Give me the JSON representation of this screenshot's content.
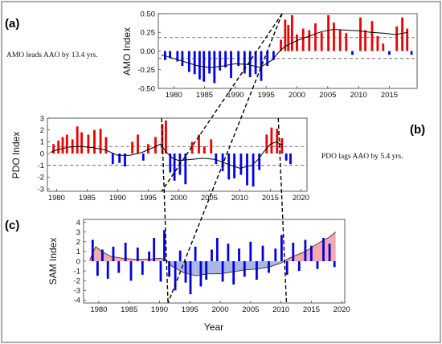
{
  "chart_data": [
    {
      "id": "a",
      "type": "bar",
      "panel_label": "(a)",
      "ylabel": "AMO Index",
      "xlabel": "",
      "annotation": "AMO leads AAO by 13.4 yrs.",
      "xlim": [
        1977.5,
        2019.5
      ],
      "ylim": [
        -0.5,
        0.5
      ],
      "xticks": [
        "1980",
        "1985",
        "1990",
        "1995",
        "2000",
        "2005",
        "2010",
        "2015"
      ],
      "yticks": [
        "0.50",
        "0.25",
        "0.00",
        "-0.25",
        "-0.50"
      ],
      "thresholds": [
        0.18,
        -0.1
      ],
      "positive_color": "#ee0000",
      "negative_color": "#0000ee",
      "smooth_x": [
        1978,
        1980,
        1982,
        1984,
        1986,
        1988,
        1990,
        1992,
        1994,
        1996,
        1997,
        1998,
        2000,
        2002,
        2004,
        2006,
        2008,
        2010,
        2012,
        2014,
        2016,
        2018
      ],
      "smooth_y": [
        -0.05,
        -0.1,
        -0.15,
        -0.2,
        -0.22,
        -0.2,
        -0.17,
        -0.18,
        -0.22,
        -0.12,
        -0.02,
        0.06,
        0.14,
        0.2,
        0.26,
        0.29,
        0.28,
        0.27,
        0.25,
        0.24,
        0.22,
        0.25
      ],
      "spikes": [
        {
          "x": 1978.6,
          "y": -0.12
        },
        {
          "x": 1979.4,
          "y": -0.09
        },
        {
          "x": 1980.6,
          "y": -0.14
        },
        {
          "x": 1981.4,
          "y": -0.2
        },
        {
          "x": 1982.5,
          "y": -0.28
        },
        {
          "x": 1983.4,
          "y": -0.31
        },
        {
          "x": 1984.2,
          "y": -0.38
        },
        {
          "x": 1984.9,
          "y": -0.41
        },
        {
          "x": 1985.8,
          "y": -0.3
        },
        {
          "x": 1986.6,
          "y": -0.43
        },
        {
          "x": 1987.5,
          "y": -0.26
        },
        {
          "x": 1988.4,
          "y": -0.22
        },
        {
          "x": 1989.3,
          "y": -0.36
        },
        {
          "x": 1990.5,
          "y": -0.2
        },
        {
          "x": 1991.5,
          "y": -0.3
        },
        {
          "x": 1992.4,
          "y": -0.35
        },
        {
          "x": 1993.3,
          "y": -0.31
        },
        {
          "x": 1994.2,
          "y": -0.4
        },
        {
          "x": 1995.2,
          "y": -0.2
        },
        {
          "x": 1996.2,
          "y": -0.12
        },
        {
          "x": 1997.4,
          "y": 0.15
        },
        {
          "x": 1998.1,
          "y": 0.42
        },
        {
          "x": 1998.6,
          "y": 0.35
        },
        {
          "x": 1999.2,
          "y": 0.48
        },
        {
          "x": 2000.0,
          "y": 0.22
        },
        {
          "x": 2001.0,
          "y": 0.3
        },
        {
          "x": 2002.0,
          "y": 0.28
        },
        {
          "x": 2003.0,
          "y": 0.37
        },
        {
          "x": 2004.0,
          "y": 0.25
        },
        {
          "x": 2005.1,
          "y": 0.48
        },
        {
          "x": 2006.0,
          "y": 0.38
        },
        {
          "x": 2007.0,
          "y": 0.29
        },
        {
          "x": 2008.0,
          "y": 0.24
        },
        {
          "x": 2009.0,
          "y": -0.05
        },
        {
          "x": 2010.3,
          "y": 0.45
        },
        {
          "x": 2011.1,
          "y": 0.28
        },
        {
          "x": 2012.2,
          "y": 0.4
        },
        {
          "x": 2013.1,
          "y": 0.2
        },
        {
          "x": 2014.0,
          "y": 0.1
        },
        {
          "x": 2015.0,
          "y": -0.05
        },
        {
          "x": 2016.2,
          "y": 0.33
        },
        {
          "x": 2017.1,
          "y": 0.45
        },
        {
          "x": 2017.9,
          "y": 0.3
        },
        {
          "x": 2018.6,
          "y": -0.05
        }
      ]
    },
    {
      "id": "b",
      "type": "bar",
      "panel_label": "(b)",
      "ylabel": "PDO Index",
      "xlabel": "",
      "annotation": "PDO lags AAO by 5.4 yrs.",
      "xlim": [
        1978.5,
        2021
      ],
      "ylim": [
        -3.2,
        3
      ],
      "xticks": [
        "1980",
        "1985",
        "1990",
        "1995",
        "2000",
        "2005",
        "2010",
        "2015",
        "2020"
      ],
      "yticks": [
        "3",
        "2",
        "1",
        "0",
        "-1",
        "-2",
        "-3"
      ],
      "thresholds": [
        0.6,
        -1.0
      ],
      "positive_color": "#ee0000",
      "negative_color": "#0000ee",
      "smooth_x": [
        1979,
        1980,
        1982,
        1984,
        1986,
        1988,
        1990,
        1992,
        1994,
        1996,
        1997,
        1998,
        1999,
        2000,
        2002,
        2004,
        2006,
        2008,
        2010,
        2012,
        2013,
        2014,
        2015,
        2016,
        2017
      ],
      "smooth_y": [
        0.1,
        0.3,
        0.55,
        0.6,
        0.5,
        0.3,
        -0.15,
        -0.15,
        0.1,
        0.55,
        0.8,
        0.1,
        -0.4,
        -0.6,
        -0.5,
        -0.4,
        -0.5,
        -0.9,
        -1.25,
        -1.0,
        -0.5,
        0.2,
        0.8,
        1.0,
        0.7
      ],
      "spikes": [
        {
          "x": 1979.5,
          "y": 0.8
        },
        {
          "x": 1980.3,
          "y": 1.1
        },
        {
          "x": 1981.0,
          "y": 1.4
        },
        {
          "x": 1981.7,
          "y": 1.6
        },
        {
          "x": 1982.6,
          "y": 1.2
        },
        {
          "x": 1983.4,
          "y": 2.3
        },
        {
          "x": 1984.1,
          "y": 1.8
        },
        {
          "x": 1985.2,
          "y": 1.6
        },
        {
          "x": 1986.2,
          "y": 2.0
        },
        {
          "x": 1987.2,
          "y": 2.1
        },
        {
          "x": 1988.1,
          "y": 1.4
        },
        {
          "x": 1989.2,
          "y": -0.9
        },
        {
          "x": 1990.3,
          "y": -0.8
        },
        {
          "x": 1991.2,
          "y": -1.1
        },
        {
          "x": 1992.4,
          "y": 1.0
        },
        {
          "x": 1993.3,
          "y": 1.6
        },
        {
          "x": 1994.2,
          "y": -0.6
        },
        {
          "x": 1995.0,
          "y": 0.8
        },
        {
          "x": 1996.2,
          "y": 1.4
        },
        {
          "x": 1997.3,
          "y": 2.5
        },
        {
          "x": 1997.9,
          "y": 2.8
        },
        {
          "x": 1998.6,
          "y": -1.6
        },
        {
          "x": 1999.3,
          "y": -2.3
        },
        {
          "x": 2000.2,
          "y": -1.8
        },
        {
          "x": 2001.1,
          "y": -2.6
        },
        {
          "x": 2002.2,
          "y": 1.0
        },
        {
          "x": 2003.3,
          "y": 1.6
        },
        {
          "x": 2004.2,
          "y": 0.6
        },
        {
          "x": 2005.3,
          "y": 1.2
        },
        {
          "x": 2006.1,
          "y": -0.9
        },
        {
          "x": 2007.2,
          "y": -1.5
        },
        {
          "x": 2008.2,
          "y": -2.2
        },
        {
          "x": 2009.1,
          "y": -2.1
        },
        {
          "x": 2010.2,
          "y": -1.8
        },
        {
          "x": 2011.2,
          "y": -2.7
        },
        {
          "x": 2012.2,
          "y": -2.8
        },
        {
          "x": 2013.2,
          "y": -1.4
        },
        {
          "x": 2014.4,
          "y": 1.6
        },
        {
          "x": 2015.2,
          "y": 2.2
        },
        {
          "x": 2016.1,
          "y": 2.1
        },
        {
          "x": 2016.9,
          "y": 1.3
        },
        {
          "x": 2017.6,
          "y": -0.6
        },
        {
          "x": 2018.3,
          "y": -0.9
        }
      ]
    },
    {
      "id": "c",
      "type": "bar",
      "panel_label": "(c)",
      "ylabel": "SAM Index",
      "xlabel": "Year",
      "annotation": "",
      "xlim": [
        1977.5,
        2020.5
      ],
      "ylim": [
        -4.3,
        4.3
      ],
      "xticks": [
        "1980",
        "1985",
        "1990",
        "1995",
        "2000",
        "2005",
        "2010",
        "2015",
        "2020"
      ],
      "yticks": [
        "4",
        "3",
        "2",
        "1",
        "0",
        "-1",
        "-2",
        "-3",
        "-4"
      ],
      "spike_color": "#0000dd",
      "positive_fill": "#f3a9b0",
      "negative_fill": "#aab6e6",
      "envelope_x": [
        1978.5,
        1979.5,
        1980.5,
        1982,
        1984,
        1986,
        1988,
        1990,
        1991,
        1992,
        1994,
        1996,
        1998,
        2000,
        2002,
        2004,
        2006,
        2008,
        2010,
        2011,
        2012,
        2014,
        2016,
        2018,
        2019
      ],
      "envelope_y": [
        0.1,
        1.5,
        1.0,
        0.5,
        0.3,
        0.2,
        0.2,
        0.3,
        0.2,
        -0.5,
        -1.2,
        -1.5,
        -1.3,
        -1.3,
        -1.1,
        -0.9,
        -0.8,
        -0.6,
        -0.2,
        0.2,
        0.5,
        1.0,
        1.8,
        2.5,
        3.0
      ],
      "spikes": [
        {
          "x": 1979.0,
          "y": 2.2
        },
        {
          "x": 1979.8,
          "y": -1.5
        },
        {
          "x": 1980.6,
          "y": 1.2
        },
        {
          "x": 1981.5,
          "y": -1.8
        },
        {
          "x": 1982.4,
          "y": 1.5
        },
        {
          "x": 1983.3,
          "y": -1.2
        },
        {
          "x": 1984.4,
          "y": 1.9
        },
        {
          "x": 1985.3,
          "y": -2.0
        },
        {
          "x": 1986.4,
          "y": 1.4
        },
        {
          "x": 1987.2,
          "y": -1.4
        },
        {
          "x": 1988.3,
          "y": 1.0
        },
        {
          "x": 1989.1,
          "y": 2.4
        },
        {
          "x": 1990.2,
          "y": -2.1
        },
        {
          "x": 1990.8,
          "y": 3.2
        },
        {
          "x": 1991.6,
          "y": -1.6
        },
        {
          "x": 1992.6,
          "y": -3.0
        },
        {
          "x": 1993.4,
          "y": 1.1
        },
        {
          "x": 1994.3,
          "y": -2.2
        },
        {
          "x": 1995.1,
          "y": -3.4
        },
        {
          "x": 1995.9,
          "y": 1.5
        },
        {
          "x": 1996.8,
          "y": -2.6
        },
        {
          "x": 1997.7,
          "y": -1.9
        },
        {
          "x": 1998.6,
          "y": 1.2
        },
        {
          "x": 1999.5,
          "y": 2.4
        },
        {
          "x": 2000.4,
          "y": -2.1
        },
        {
          "x": 2001.3,
          "y": 1.8
        },
        {
          "x": 2002.2,
          "y": -2.4
        },
        {
          "x": 2003.1,
          "y": 1.3
        },
        {
          "x": 2004.0,
          "y": -1.6
        },
        {
          "x": 2005.0,
          "y": 2.0
        },
        {
          "x": 2006.0,
          "y": -1.9
        },
        {
          "x": 2007.0,
          "y": 1.6
        },
        {
          "x": 2008.0,
          "y": -1.2
        },
        {
          "x": 2009.1,
          "y": 1.3
        },
        {
          "x": 2010.1,
          "y": 2.7
        },
        {
          "x": 2011.0,
          "y": -1.4
        },
        {
          "x": 2012.0,
          "y": 1.9
        },
        {
          "x": 2013.0,
          "y": -1.0
        },
        {
          "x": 2014.0,
          "y": 2.2
        },
        {
          "x": 2015.0,
          "y": 1.6
        },
        {
          "x": 2016.0,
          "y": -0.8
        },
        {
          "x": 2017.0,
          "y": 2.4
        },
        {
          "x": 2018.0,
          "y": 1.8
        },
        {
          "x": 2018.8,
          "y": -0.6
        }
      ]
    }
  ],
  "lag_markers": {
    "color": "#000000",
    "years": [
      {
        "x": 1997.6,
        "panel": "a"
      },
      {
        "x": 1991.4,
        "panel": "c"
      },
      {
        "x": 1997.2,
        "panel": "b"
      },
      {
        "x": 1991.4,
        "panel": "c"
      },
      {
        "x": 2016.3,
        "panel": "b"
      },
      {
        "x": 2010.9,
        "panel": "c"
      },
      {
        "x": 1997.6,
        "panel": "a"
      },
      {
        "x": 1997.2,
        "panel": "b"
      }
    ]
  }
}
